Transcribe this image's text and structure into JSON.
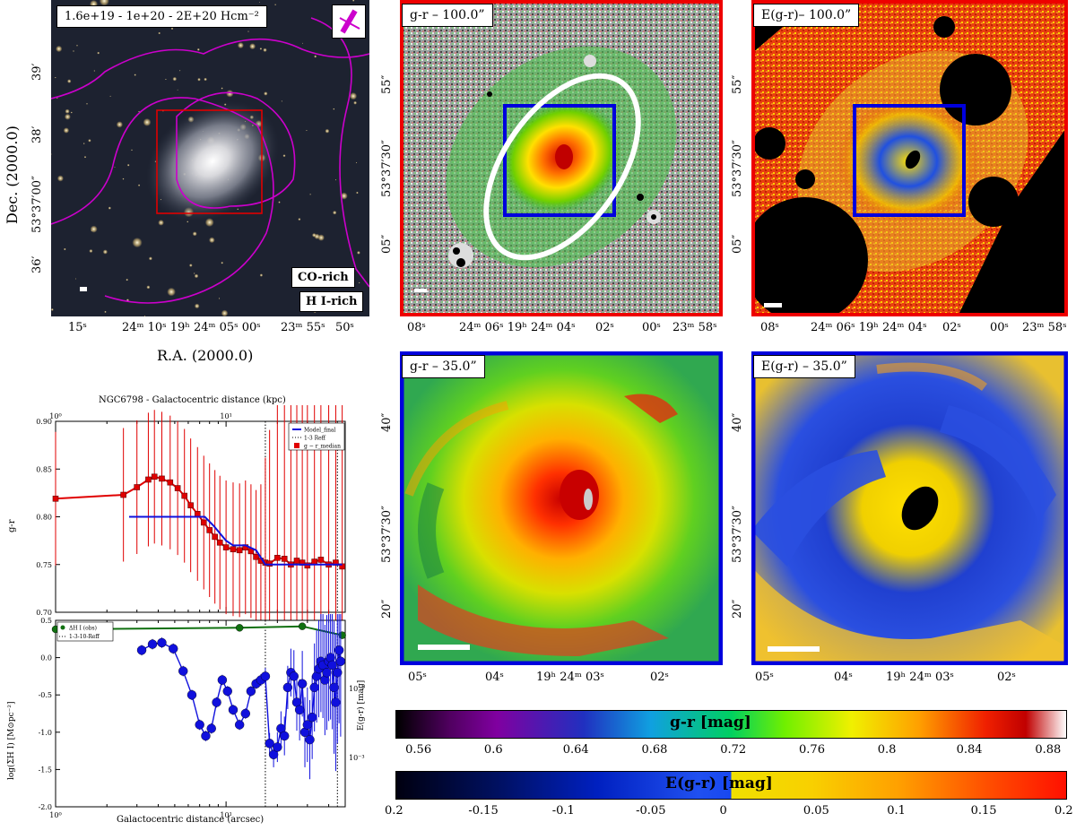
{
  "panels": {
    "optical": {
      "label": "1.6e+19 - 1e+20 - 2E+20 Hcm⁻²",
      "legend_co": "CO-rich",
      "legend_hi": "H I-rich",
      "xlabel": "R.A. (2000.0)",
      "ylabel": "Dec. (2000.0)",
      "xticks": [
        "15ˢ",
        "24ᵐ 10ˢ 19ʰ 24ᵐ 05ˢ 00ˢ",
        "23ᵐ 55ˢ",
        "50ˢ"
      ],
      "yticks": [
        "39′",
        "38′",
        "53°37′00″",
        "36′"
      ]
    },
    "gr100": {
      "label": "g-r – 100.0”",
      "xticks": [
        "08ˢ",
        "24ᵐ 06ˢ 19ʰ 24ᵐ 04ˢ",
        "02ˢ",
        "00ˢ",
        "23ᵐ 58ˢ"
      ],
      "yticks": [
        "55″",
        "53°37′30″",
        "05″"
      ]
    },
    "egr100": {
      "label": "E(g-r)– 100.0”",
      "xticks": [
        "08ˢ",
        "24ᵐ 06ˢ 19ʰ 24ᵐ 04ˢ",
        "02ˢ",
        "00ˢ",
        "23ᵐ 58ˢ"
      ],
      "yticks": [
        "55″",
        "53°37′30″",
        "05″"
      ]
    },
    "gr35": {
      "label": "g-r – 35.0”",
      "xticks": [
        "05ˢ",
        "04ˢ",
        "19ʰ 24ᵐ 03ˢ",
        "02ˢ"
      ],
      "yticks": [
        "40″",
        "53°37′30″",
        "20″"
      ]
    },
    "egr35": {
      "label": "E(g-r) – 35.0”",
      "xticks": [
        "05ˢ",
        "04ˢ",
        "19ʰ 24ᵐ 03ˢ",
        "02ˢ"
      ],
      "yticks": [
        "40″",
        "53°37′30″",
        "20″"
      ]
    }
  },
  "colorbars": {
    "gr": {
      "label": "g-r [mag]",
      "ticks": [
        "0.56",
        "0.6",
        "0.64",
        "0.68",
        "0.72",
        "0.76",
        "0.8",
        "0.84",
        "0.88"
      ]
    },
    "egr": {
      "label": "E(g-r) [mag]",
      "ticks": [
        "0.2",
        "-0.15",
        "-0.1",
        "-0.05",
        "0",
        "0.05",
        "0.1",
        "0.15",
        "0.2"
      ]
    }
  },
  "profile_title": "NGC6798 - Galactocentric distance (kpc)",
  "chart_data": [
    {
      "type": "line",
      "title": "",
      "top_axis_ticks": [
        "10⁰",
        "10¹"
      ],
      "ylabel": "g-r",
      "ylim": [
        0.7,
        0.9
      ],
      "xlim": [
        1,
        50
      ],
      "xscale": "log",
      "yticks": [
        "0.70",
        "0.75",
        "0.80",
        "0.85",
        "0.90"
      ],
      "legend": [
        "Model_final",
        "1-3 Reff",
        "g − r_median"
      ],
      "legend_placement": "top-right",
      "vlines": [
        17,
        45
      ],
      "series": [
        {
          "name": "g − r_median",
          "color": "#e00000",
          "x": [
            1,
            2.5,
            3,
            3.5,
            3.8,
            4.2,
            4.7,
            5.2,
            5.7,
            6.2,
            6.8,
            7.4,
            8,
            8.6,
            9.2,
            10,
            11,
            12,
            13,
            14,
            15,
            16,
            17,
            18,
            20,
            22,
            24,
            26,
            28,
            30,
            33,
            36,
            40,
            44,
            48
          ],
          "y": [
            0.819,
            0.823,
            0.831,
            0.839,
            0.842,
            0.84,
            0.836,
            0.83,
            0.822,
            0.812,
            0.803,
            0.794,
            0.786,
            0.779,
            0.773,
            0.768,
            0.766,
            0.765,
            0.768,
            0.764,
            0.758,
            0.754,
            0.752,
            0.751,
            0.757,
            0.756,
            0.75,
            0.754,
            0.752,
            0.749,
            0.753,
            0.755,
            0.75,
            0.752,
            0.748
          ]
        },
        {
          "name": "Model_final",
          "color": "#1010dd",
          "x": [
            2.7,
            7.5,
            8.5,
            10,
            11,
            12,
            13,
            15,
            17,
            48
          ],
          "y": [
            0.8,
            0.8,
            0.79,
            0.775,
            0.77,
            0.77,
            0.77,
            0.765,
            0.75,
            0.75
          ]
        }
      ]
    },
    {
      "type": "line",
      "xlabel": "Galactocentric distance (arcsec)",
      "ylabel": "log(ΣH I) [M⊙pc⁻²]",
      "right_ylabel": "E(g-r) [mag]",
      "ylim": [
        -2.0,
        0.5
      ],
      "xlim": [
        1,
        50
      ],
      "xscale": "log",
      "yticks": [
        "0.5",
        "0.0",
        "-0.5",
        "-1.0",
        "-1.5",
        "-2.0"
      ],
      "xticks": [
        "10⁰",
        "10¹"
      ],
      "right_yticks": [
        "10⁻²",
        "10⁻³"
      ],
      "legend": [
        "ΔH I (obs)",
        "1-3-10-Reff"
      ],
      "legend_placement": "top-left",
      "vlines": [
        17,
        45
      ],
      "series": [
        {
          "name": "ΔH I (obs)",
          "color": "#107010",
          "x": [
            1,
            12,
            28,
            48
          ],
          "y": [
            0.38,
            0.4,
            0.42,
            0.3
          ]
        },
        {
          "name": "E(g-r)",
          "color": "#1010dd",
          "x": [
            3.2,
            3.7,
            4.2,
            4.9,
            5.6,
            6.3,
            7.0,
            7.6,
            8.2,
            8.8,
            9.5,
            10.2,
            11.0,
            12.0,
            13.0,
            14.0,
            15.0,
            16.0,
            17.0,
            18.0,
            19.0,
            20.0,
            21.0,
            22.0,
            23.0,
            24.0,
            25.0,
            26.0,
            27.0,
            28.0,
            29.0,
            30.0,
            31.0,
            32.0,
            33.0,
            34.0,
            35.0,
            36.0,
            37.0,
            38.0,
            39.0,
            40.0,
            41.0,
            42.0,
            43.0,
            44.0,
            45.0,
            46.0,
            47.0
          ],
          "y": [
            0.1,
            0.18,
            0.2,
            0.12,
            -0.18,
            -0.5,
            -0.9,
            -1.05,
            -0.95,
            -0.6,
            -0.3,
            -0.45,
            -0.7,
            -0.9,
            -0.75,
            -0.45,
            -0.35,
            -0.3,
            -0.25,
            -1.15,
            -1.3,
            -1.2,
            -0.95,
            -1.05,
            -0.4,
            -0.2,
            -0.25,
            -0.6,
            -0.7,
            -0.35,
            -1.0,
            -0.9,
            -1.1,
            -0.8,
            -0.4,
            -0.25,
            -0.15,
            -0.05,
            -0.1,
            -0.3,
            -0.2,
            -0.05,
            0.0,
            -0.1,
            -0.4,
            -0.6,
            -0.2,
            0.1,
            -0.05
          ]
        }
      ]
    }
  ],
  "colors": {
    "frame_red": "#ee0000",
    "frame_blue": "#0000dd",
    "contour": "#cc00cc"
  }
}
